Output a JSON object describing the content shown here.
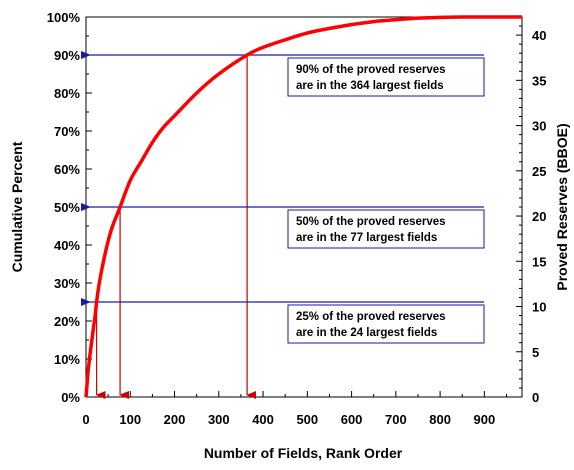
{
  "chart_data": {
    "type": "line",
    "title": "",
    "xlabel": "Number of Fields, Rank Order",
    "ylabel_left": "Cumulative Percent",
    "ylabel_right": "Proved Reserves (BBOE)",
    "xlim": [
      0,
      985
    ],
    "ylim_left": [
      0,
      100
    ],
    "ylim_right": [
      0,
      42
    ],
    "x_ticks": [
      "0",
      "100",
      "200",
      "300",
      "400",
      "500",
      "600",
      "700",
      "800",
      "900"
    ],
    "y_left_ticks": [
      "0%",
      "10%",
      "20%",
      "30%",
      "40%",
      "50%",
      "60%",
      "70%",
      "80%",
      "90%",
      "100%"
    ],
    "y_right_ticks": [
      "0",
      "5",
      "10",
      "15",
      "20",
      "25",
      "30",
      "35",
      "40"
    ],
    "grid": false,
    "series": [
      {
        "color": "#ff0000",
        "x": [
          0,
          5,
          10,
          20,
          24,
          30,
          40,
          50,
          60,
          77,
          100,
          125,
          150,
          175,
          200,
          250,
          300,
          364,
          400,
          450,
          500,
          550,
          600,
          650,
          700,
          750,
          800,
          850,
          900,
          985
        ],
        "y": [
          0,
          7,
          12,
          21,
          25,
          30,
          36,
          41,
          45,
          50,
          57,
          62,
          67,
          71,
          74,
          80,
          85,
          90,
          92,
          94,
          95.8,
          97,
          98,
          98.8,
          99.3,
          99.7,
          99.9,
          100,
          100,
          100
        ]
      }
    ],
    "arrow_color": "#1a1aa0",
    "drop_line_color": "#cc0000",
    "annotations": [
      {
        "line1": "90% of the proved reserves",
        "line2": "are in the 364 largest fields",
        "percent": 90,
        "fields": 364
      },
      {
        "line1": "50% of the proved reserves",
        "line2": "are in the 77 largest fields",
        "percent": 50,
        "fields": 77
      },
      {
        "line1": "25% of the proved reserves",
        "line2": "are in the 24 largest fields",
        "percent": 25,
        "fields": 24
      }
    ]
  }
}
